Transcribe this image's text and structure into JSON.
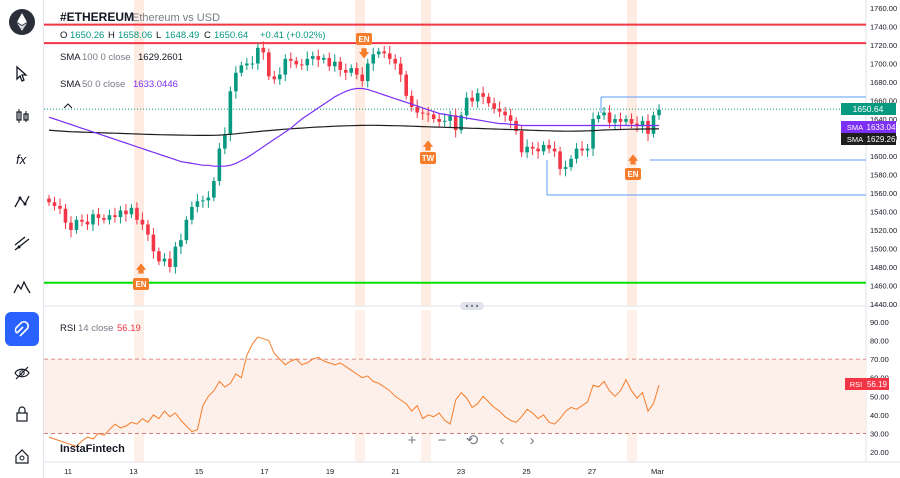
{
  "header": {
    "symbol": "#ETHEREUM",
    "description": "Ethereum vs USD",
    "o_label": "O",
    "o_value": "1650.26",
    "h_label": "H",
    "h_value": "1658.06",
    "l_label": "L",
    "l_value": "1648.49",
    "c_label": "C",
    "c_value": "1650.64",
    "change": "+0.41 (+0.02%)"
  },
  "indicators": {
    "sma100_label": "SMA",
    "sma100_params": "100  0  close",
    "sma100_value": "1629.2601",
    "sma50_label": "SMA",
    "sma50_params": "50  0  close",
    "sma50_value": "1633.0446",
    "rsi_label": "RSI",
    "rsi_params": "14  close",
    "rsi_value": "56.19"
  },
  "price_tags": {
    "last": "1650.64",
    "sma50_tag": "SMA",
    "sma50_value": "1633.04",
    "sma100_tag": "SMA",
    "sma100_value": "1629.26",
    "rsi_tag": "RSI",
    "rsi_value": "56.19"
  },
  "markers": {
    "en_1": "EN",
    "en_2": "EN",
    "en_3": "EN",
    "tw_1": "TW"
  },
  "watermark": "InstaFintech",
  "sidebar_tools": [
    "ethereum-logo",
    "cursor-icon",
    "candles-icon",
    "function-icon",
    "pattern-icon",
    "trendline-icon",
    "mountain-icon",
    "magnet-icon",
    "visibility-icon",
    "lock-icon",
    "home-icon"
  ],
  "colors": {
    "up": "#089981",
    "down": "#f23645",
    "sma50": "#7b2ff7",
    "sma100": "#1e1e1e",
    "rsi": "#f57c2a",
    "accent": "#2962ff",
    "green_level": "#00e000",
    "red_level": "#f23645"
  },
  "chart_data": {
    "type": "candlestick",
    "price_axis": {
      "min": 1440,
      "max": 1760,
      "ticks": [
        "1760.00",
        "1740.00",
        "1720.00",
        "1700.00",
        "1680.00",
        "1660.00",
        "1640.00",
        "1620.00",
        "1600.00",
        "1580.00",
        "1560.00",
        "1540.00",
        "1520.00",
        "1500.00",
        "1480.00",
        "1460.00",
        "1440.00"
      ]
    },
    "rsi_axis": {
      "min": 20,
      "max": 90,
      "ticks": [
        "90.00",
        "80.00",
        "70.00",
        "60.00",
        "50.00",
        "40.00",
        "30.00",
        "20.00"
      ],
      "bands": [
        30,
        70
      ]
    },
    "time_labels": [
      "11",
      "13",
      "15",
      "17",
      "19",
      "21",
      "23",
      "25",
      "27",
      "Mar"
    ],
    "horizontal_levels": [
      {
        "price": 1742,
        "color": "red"
      },
      {
        "price": 1722,
        "color": "red"
      },
      {
        "price": 1463,
        "color": "green"
      }
    ],
    "closes": [
      1550,
      1546,
      1543,
      1528,
      1520,
      1531,
      1529,
      1526,
      1537,
      1533,
      1531,
      1536,
      1534,
      1541,
      1537,
      1544,
      1531,
      1526,
      1515,
      1497,
      1486,
      1489,
      1480,
      1502,
      1509,
      1531,
      1545,
      1551,
      1552,
      1555,
      1573,
      1608,
      1623,
      1670,
      1690,
      1698,
      1700,
      1700,
      1717,
      1712,
      1686,
      1683,
      1688,
      1705,
      1703,
      1699,
      1698,
      1705,
      1708,
      1704,
      1706,
      1697,
      1702,
      1693,
      1690,
      1695,
      1688,
      1681,
      1700,
      1710,
      1713,
      1711,
      1705,
      1700,
      1688,
      1665,
      1653,
      1647,
      1646,
      1645,
      1640,
      1637,
      1638,
      1644,
      1628,
      1644,
      1663,
      1659,
      1668,
      1664,
      1657,
      1651,
      1648,
      1644,
      1638,
      1627,
      1604,
      1610,
      1608,
      1605,
      1612,
      1608,
      1605,
      1586,
      1588,
      1597,
      1608,
      1606,
      1608,
      1640,
      1644,
      1647,
      1636,
      1640,
      1637,
      1640,
      1635,
      1632,
      1638,
      1624,
      1644,
      1650
    ],
    "sma50": [
      1642,
      1640,
      1638,
      1636,
      1634,
      1632,
      1630,
      1628,
      1626,
      1624,
      1622,
      1620,
      1618,
      1616,
      1614,
      1612,
      1610,
      1608,
      1606,
      1604,
      1602,
      1600,
      1598,
      1596,
      1594,
      1593,
      1592,
      1591,
      1590,
      1590,
      1589,
      1589,
      1589,
      1590,
      1592,
      1595,
      1598,
      1602,
      1606,
      1610,
      1614,
      1618,
      1622,
      1626,
      1630,
      1635,
      1640,
      1644,
      1648,
      1652,
      1656,
      1660,
      1664,
      1667,
      1670,
      1672,
      1673,
      1673,
      1672,
      1670,
      1668,
      1666,
      1664,
      1662,
      1660,
      1658,
      1656,
      1654,
      1652,
      1650,
      1648,
      1646,
      1645,
      1644,
      1643,
      1642,
      1641,
      1640,
      1639,
      1638,
      1637,
      1636,
      1635,
      1635,
      1634,
      1634,
      1633,
      1633,
      1633,
      1633,
      1633,
      1633,
      1633,
      1633,
      1633,
      1633,
      1633,
      1633,
      1633,
      1633,
      1633,
      1633,
      1633,
      1633,
      1633,
      1633,
      1633,
      1633,
      1633,
      1633,
      1633,
      1633
    ],
    "sma100": [
      1628,
      1627.5,
      1627,
      1626.6,
      1626.2,
      1626,
      1625.8,
      1625.6,
      1625.4,
      1625.2,
      1625,
      1624.8,
      1624.6,
      1624.4,
      1624.2,
      1624,
      1623.8,
      1623.6,
      1623.4,
      1623.2,
      1623,
      1622.9,
      1622.8,
      1622.7,
      1622.6,
      1622.5,
      1622.4,
      1622.3,
      1622.3,
      1622.3,
      1622.4,
      1622.6,
      1623,
      1623.5,
      1624,
      1624.6,
      1625.2,
      1625.8,
      1626.4,
      1627,
      1627.5,
      1628,
      1628.5,
      1629,
      1629.4,
      1629.8,
      1630.2,
      1630.6,
      1631,
      1631.3,
      1631.6,
      1631.9,
      1632.2,
      1632.4,
      1632.6,
      1632.8,
      1633,
      1633.1,
      1633.2,
      1633.2,
      1633.1,
      1633,
      1632.9,
      1632.8,
      1632.6,
      1632.4,
      1632.2,
      1632,
      1631.8,
      1631.6,
      1631.4,
      1631.2,
      1631,
      1630.8,
      1630.6,
      1630.4,
      1630.2,
      1630,
      1629.8,
      1629.6,
      1629.4,
      1629.2,
      1629,
      1628.8,
      1628.6,
      1628.4,
      1628.2,
      1628,
      1627.8,
      1627.6,
      1627.4,
      1627.2,
      1627,
      1626.9,
      1626.8,
      1626.8,
      1626.9,
      1627,
      1627.2,
      1627.5,
      1627.8,
      1628.1,
      1628.3,
      1628.5,
      1628.7,
      1628.9,
      1629,
      1629.1,
      1629.15,
      1629.2,
      1629.25,
      1629.26
    ],
    "rsi": [
      28,
      27,
      26,
      25,
      24,
      23,
      26,
      28,
      27,
      30,
      29,
      32,
      35,
      33,
      34,
      36,
      35,
      38,
      36,
      40,
      38,
      42,
      39,
      41,
      37,
      34,
      31,
      32,
      45,
      50,
      53,
      58,
      55,
      57,
      62,
      60,
      72,
      78,
      82,
      81,
      80,
      73,
      70,
      67,
      69,
      70,
      67,
      68,
      70,
      71,
      69,
      68,
      67,
      68,
      66,
      64,
      62,
      60,
      61,
      58,
      57,
      55,
      53,
      50,
      48,
      46,
      42,
      45,
      38,
      40,
      39,
      41,
      37,
      35,
      48,
      52,
      49,
      44,
      46,
      50,
      47,
      44,
      42,
      39,
      37,
      36,
      39,
      43,
      41,
      38,
      40,
      36,
      35,
      38,
      42,
      44,
      43,
      45,
      47,
      56,
      55,
      58,
      53,
      50,
      53,
      59,
      53,
      49,
      52,
      42,
      46,
      56
    ]
  }
}
